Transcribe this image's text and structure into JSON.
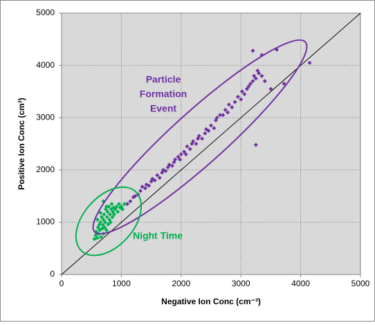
{
  "chart_data": {
    "type": "scatter",
    "xlabel": "Negative Ion Conc (cm⁻³)",
    "ylabel": "Positive Ion Conc (cm³)",
    "xlim": [
      0,
      5000
    ],
    "ylim": [
      0,
      5000
    ],
    "xticks": [
      0,
      1000,
      2000,
      3000,
      4000,
      5000
    ],
    "yticks": [
      0,
      1000,
      2000,
      3000,
      4000,
      5000
    ],
    "grid": true,
    "series": [
      {
        "color": "#7030a0",
        "x": [
          1100,
          1150,
          1200,
          1230,
          1280,
          1320,
          1350,
          1400,
          1420,
          1460,
          1500,
          1520,
          1560,
          1600,
          1640,
          1680,
          1700,
          1740,
          1780,
          1800,
          1850,
          1880,
          1900,
          1950,
          1980,
          2000,
          2050,
          2080,
          2100,
          2150,
          2180,
          2200,
          2250,
          2280,
          2300,
          2350,
          2400,
          2420,
          2460,
          2500,
          2550,
          2580,
          2600,
          2650,
          2700,
          2740,
          2780,
          2800,
          2850,
          2900,
          2950,
          3000,
          3020,
          3060,
          3100,
          3130,
          3160,
          3200,
          3220,
          3250,
          3280,
          3300,
          3350,
          3400,
          3250,
          3600,
          4150,
          3720,
          3500,
          3200,
          3350
        ],
        "values": [
          1350,
          1400,
          1480,
          1500,
          1530,
          1600,
          1680,
          1650,
          1720,
          1700,
          1780,
          1830,
          1800,
          1900,
          1850,
          1950,
          2000,
          1980,
          2050,
          2100,
          2080,
          2150,
          2200,
          2250,
          2200,
          2300,
          2350,
          2300,
          2450,
          2400,
          2500,
          2550,
          2500,
          2600,
          2650,
          2600,
          2700,
          2780,
          2750,
          2850,
          2800,
          2950,
          3000,
          3050,
          3050,
          3150,
          3100,
          3250,
          3200,
          3300,
          3400,
          3350,
          3500,
          3450,
          3550,
          3600,
          3650,
          3700,
          3800,
          3750,
          3900,
          3850,
          3800,
          3700,
          2480,
          4300,
          4050,
          3650,
          3550,
          4280,
          4200
        ]
      },
      {
        "color": "#00b050",
        "x": [
          550,
          570,
          580,
          600,
          610,
          620,
          630,
          640,
          650,
          660,
          670,
          680,
          690,
          700,
          700,
          710,
          720,
          730,
          740,
          750,
          760,
          770,
          780,
          790,
          800,
          810,
          820,
          830,
          840,
          850,
          860,
          870,
          880,
          900,
          920,
          940,
          960,
          980,
          1000,
          1020,
          1050,
          600,
          650,
          700,
          750
        ],
        "values": [
          680,
          750,
          820,
          700,
          900,
          780,
          950,
          850,
          1000,
          720,
          1100,
          880,
          950,
          1050,
          780,
          1150,
          900,
          1000,
          1250,
          850,
          1100,
          1200,
          960,
          1300,
          1050,
          1150,
          1000,
          1250,
          1350,
          1100,
          1200,
          1280,
          1150,
          1250,
          1300,
          1200,
          1350,
          1280,
          1300,
          1250,
          1350,
          1050,
          1180,
          1400,
          1300
        ]
      }
    ],
    "annotations": [
      {
        "lines": [
          "Particle",
          "Formation",
          "Event"
        ],
        "color": "#7030a0"
      },
      {
        "lines": [
          "Night Time"
        ],
        "color": "#00b050"
      }
    ]
  }
}
